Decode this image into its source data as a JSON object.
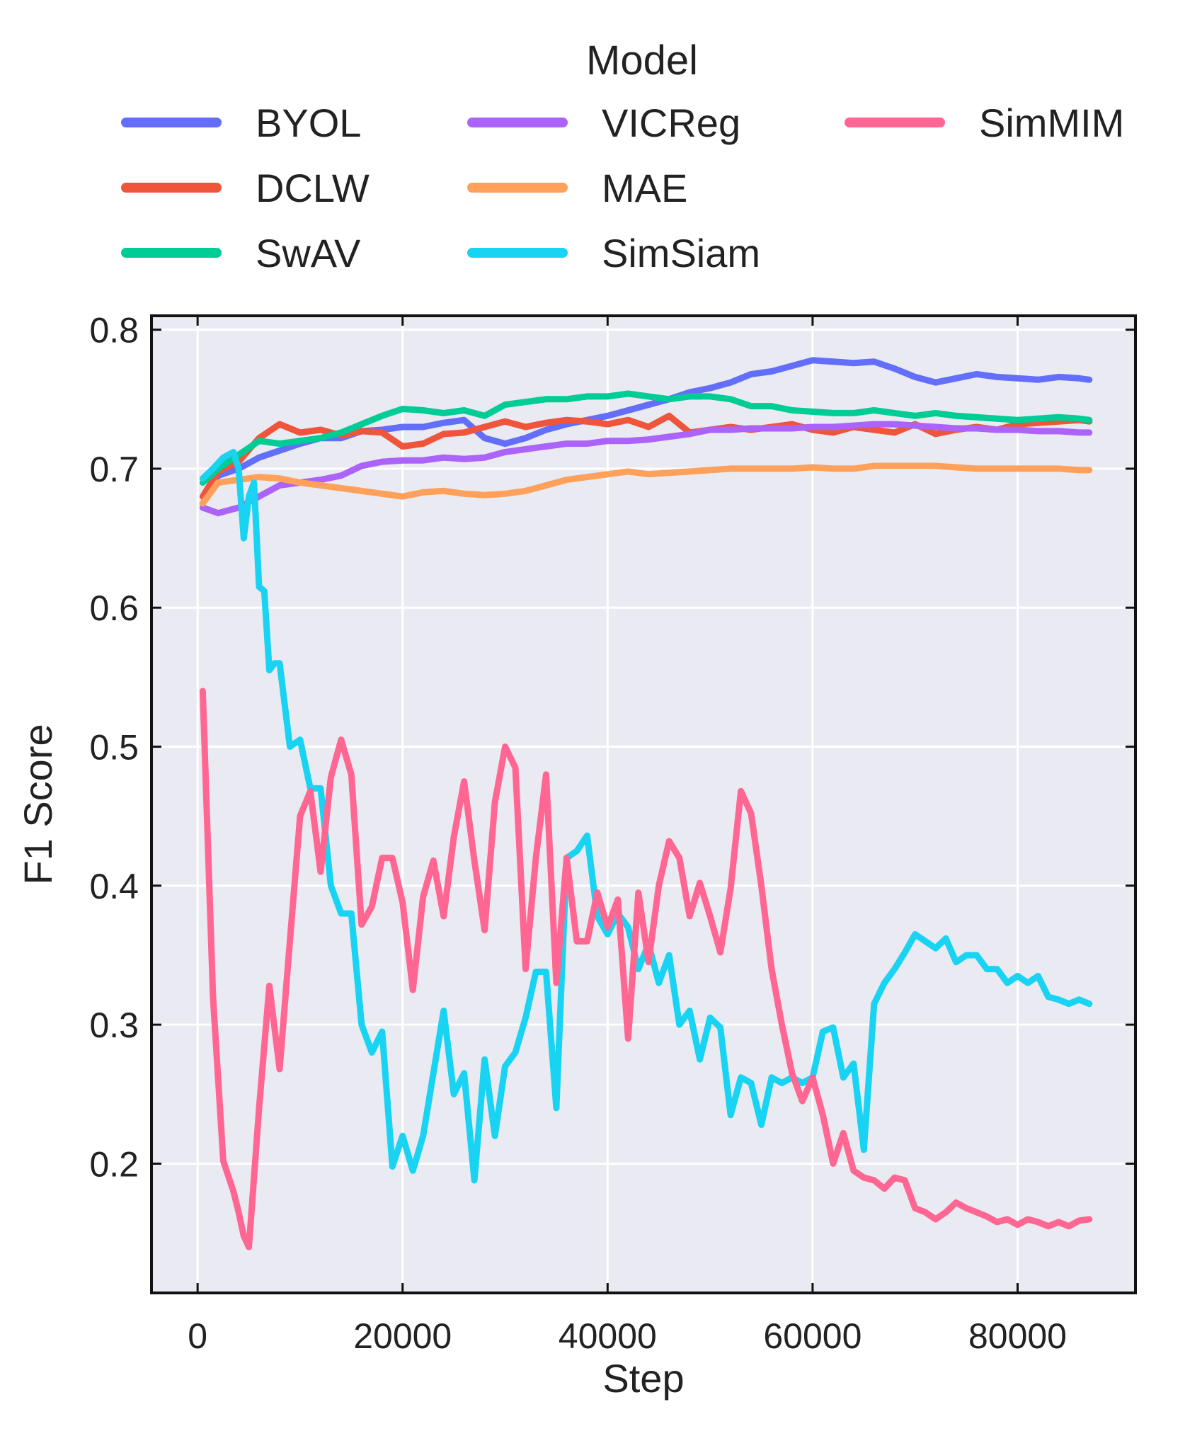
{
  "chart_data": {
    "type": "line",
    "xlabel": "Step",
    "ylabel": "F1 Score",
    "xlim": [
      -4500,
      91500
    ],
    "ylim": [
      0.107,
      0.81
    ],
    "xticks": [
      0,
      20000,
      40000,
      60000,
      80000
    ],
    "yticks": [
      0.2,
      0.3,
      0.4,
      0.5,
      0.6,
      0.7,
      0.8
    ],
    "xtick_labels": [
      "0",
      "20000",
      "40000",
      "60000",
      "80000"
    ],
    "ytick_labels": [
      "0.2",
      "0.3",
      "0.4",
      "0.5",
      "0.6",
      "0.7",
      "0.8"
    ],
    "grid": true,
    "legend": {
      "title": "Model",
      "placement": "top",
      "columns": 3
    },
    "series": [
      {
        "name": "BYOL",
        "color": "#636EFA",
        "x": [
          500,
          2000,
          4000,
          6000,
          8000,
          10000,
          12000,
          14000,
          16000,
          18000,
          20000,
          22000,
          24000,
          26000,
          28000,
          30000,
          32000,
          34000,
          36000,
          38000,
          40000,
          42000,
          44000,
          46000,
          48000,
          50000,
          52000,
          54000,
          56000,
          58000,
          60000,
          62000,
          64000,
          66000,
          68000,
          70000,
          72000,
          74000,
          76000,
          78000,
          80000,
          82000,
          84000,
          86000,
          87000
        ],
        "values": [
          0.675,
          0.695,
          0.7,
          0.708,
          0.713,
          0.718,
          0.722,
          0.722,
          0.727,
          0.728,
          0.73,
          0.73,
          0.733,
          0.735,
          0.722,
          0.718,
          0.722,
          0.728,
          0.732,
          0.735,
          0.738,
          0.742,
          0.746,
          0.75,
          0.755,
          0.758,
          0.762,
          0.768,
          0.77,
          0.774,
          0.778,
          0.777,
          0.776,
          0.777,
          0.772,
          0.766,
          0.762,
          0.765,
          0.768,
          0.766,
          0.765,
          0.764,
          0.766,
          0.765,
          0.764
        ]
      },
      {
        "name": "DCLW",
        "color": "#EF553B",
        "x": [
          500,
          2000,
          4000,
          6000,
          8000,
          10000,
          12000,
          14000,
          16000,
          18000,
          20000,
          22000,
          24000,
          26000,
          28000,
          30000,
          32000,
          34000,
          36000,
          38000,
          40000,
          42000,
          44000,
          46000,
          48000,
          50000,
          52000,
          54000,
          56000,
          58000,
          60000,
          62000,
          64000,
          66000,
          68000,
          70000,
          72000,
          74000,
          76000,
          78000,
          80000,
          82000,
          84000,
          86000,
          87000
        ],
        "values": [
          0.68,
          0.698,
          0.705,
          0.722,
          0.732,
          0.726,
          0.728,
          0.724,
          0.727,
          0.726,
          0.716,
          0.718,
          0.725,
          0.726,
          0.73,
          0.734,
          0.73,
          0.733,
          0.735,
          0.734,
          0.732,
          0.735,
          0.73,
          0.738,
          0.726,
          0.728,
          0.73,
          0.728,
          0.73,
          0.732,
          0.728,
          0.726,
          0.73,
          0.728,
          0.726,
          0.732,
          0.725,
          0.728,
          0.73,
          0.728,
          0.732,
          0.733,
          0.734,
          0.735,
          0.734
        ]
      },
      {
        "name": "SwAV",
        "color": "#00CC96",
        "x": [
          500,
          2000,
          4000,
          6000,
          8000,
          10000,
          12000,
          14000,
          16000,
          18000,
          20000,
          22000,
          24000,
          26000,
          28000,
          30000,
          32000,
          34000,
          36000,
          38000,
          40000,
          42000,
          44000,
          46000,
          48000,
          50000,
          52000,
          54000,
          56000,
          58000,
          60000,
          62000,
          64000,
          66000,
          68000,
          70000,
          72000,
          74000,
          76000,
          78000,
          80000,
          82000,
          84000,
          86000,
          87000
        ],
        "values": [
          0.69,
          0.7,
          0.71,
          0.72,
          0.718,
          0.72,
          0.722,
          0.726,
          0.732,
          0.738,
          0.743,
          0.742,
          0.74,
          0.742,
          0.738,
          0.746,
          0.748,
          0.75,
          0.75,
          0.752,
          0.752,
          0.754,
          0.752,
          0.75,
          0.752,
          0.752,
          0.75,
          0.745,
          0.745,
          0.742,
          0.741,
          0.74,
          0.74,
          0.742,
          0.74,
          0.738,
          0.74,
          0.738,
          0.737,
          0.736,
          0.735,
          0.736,
          0.737,
          0.736,
          0.735
        ]
      },
      {
        "name": "VICReg",
        "color": "#AB63FA",
        "x": [
          500,
          2000,
          4000,
          6000,
          8000,
          10000,
          12000,
          14000,
          16000,
          18000,
          20000,
          22000,
          24000,
          26000,
          28000,
          30000,
          32000,
          34000,
          36000,
          38000,
          40000,
          42000,
          44000,
          46000,
          48000,
          50000,
          52000,
          54000,
          56000,
          58000,
          60000,
          62000,
          64000,
          66000,
          68000,
          70000,
          72000,
          74000,
          76000,
          78000,
          80000,
          82000,
          84000,
          86000,
          87000
        ],
        "values": [
          0.672,
          0.668,
          0.672,
          0.68,
          0.688,
          0.69,
          0.692,
          0.695,
          0.702,
          0.705,
          0.706,
          0.706,
          0.708,
          0.707,
          0.708,
          0.712,
          0.714,
          0.716,
          0.718,
          0.718,
          0.72,
          0.72,
          0.721,
          0.723,
          0.725,
          0.728,
          0.728,
          0.729,
          0.729,
          0.729,
          0.73,
          0.73,
          0.731,
          0.732,
          0.732,
          0.731,
          0.73,
          0.729,
          0.729,
          0.728,
          0.728,
          0.727,
          0.727,
          0.726,
          0.726
        ]
      },
      {
        "name": "MAE",
        "color": "#FFA15A",
        "x": [
          500,
          2000,
          4000,
          6000,
          8000,
          10000,
          12000,
          14000,
          16000,
          18000,
          20000,
          22000,
          24000,
          26000,
          28000,
          30000,
          32000,
          34000,
          36000,
          38000,
          40000,
          42000,
          44000,
          46000,
          48000,
          50000,
          52000,
          54000,
          56000,
          58000,
          60000,
          62000,
          64000,
          66000,
          68000,
          70000,
          72000,
          74000,
          76000,
          78000,
          80000,
          82000,
          84000,
          86000,
          87000
        ],
        "values": [
          0.675,
          0.69,
          0.692,
          0.694,
          0.693,
          0.69,
          0.688,
          0.686,
          0.684,
          0.682,
          0.68,
          0.683,
          0.684,
          0.682,
          0.681,
          0.682,
          0.684,
          0.688,
          0.692,
          0.694,
          0.696,
          0.698,
          0.696,
          0.697,
          0.698,
          0.699,
          0.7,
          0.7,
          0.7,
          0.7,
          0.701,
          0.7,
          0.7,
          0.702,
          0.702,
          0.702,
          0.702,
          0.701,
          0.7,
          0.7,
          0.7,
          0.7,
          0.7,
          0.699,
          0.699
        ]
      },
      {
        "name": "SimSiam",
        "color": "#19D3F3",
        "x": [
          500,
          1500,
          2500,
          3500,
          4000,
          4500,
          5000,
          5500,
          6000,
          6500,
          7000,
          7500,
          8000,
          9000,
          10000,
          11000,
          12000,
          13000,
          14000,
          15000,
          16000,
          17000,
          18000,
          19000,
          20000,
          21000,
          22000,
          23000,
          24000,
          25000,
          26000,
          27000,
          28000,
          29000,
          30000,
          31000,
          32000,
          33000,
          34000,
          35000,
          36000,
          37000,
          38000,
          39000,
          40000,
          41000,
          42000,
          43000,
          44000,
          45000,
          46000,
          47000,
          48000,
          49000,
          50000,
          51000,
          52000,
          53000,
          54000,
          55000,
          56000,
          57000,
          58000,
          59000,
          60000,
          61000,
          62000,
          63000,
          64000,
          65000,
          66000,
          67000,
          68000,
          69000,
          70000,
          71000,
          72000,
          73000,
          74000,
          75000,
          76000,
          77000,
          78000,
          79000,
          80000,
          81000,
          82000,
          83000,
          84000,
          85000,
          86000,
          87000
        ],
        "values": [
          0.693,
          0.7,
          0.708,
          0.712,
          0.7,
          0.65,
          0.68,
          0.69,
          0.615,
          0.612,
          0.555,
          0.56,
          0.56,
          0.5,
          0.505,
          0.47,
          0.47,
          0.4,
          0.38,
          0.38,
          0.3,
          0.28,
          0.295,
          0.198,
          0.22,
          0.195,
          0.22,
          0.265,
          0.31,
          0.25,
          0.265,
          0.188,
          0.275,
          0.22,
          0.27,
          0.28,
          0.305,
          0.338,
          0.338,
          0.24,
          0.42,
          0.425,
          0.436,
          0.378,
          0.365,
          0.38,
          0.37,
          0.34,
          0.358,
          0.33,
          0.35,
          0.3,
          0.31,
          0.275,
          0.305,
          0.298,
          0.235,
          0.262,
          0.258,
          0.228,
          0.262,
          0.258,
          0.262,
          0.258,
          0.262,
          0.295,
          0.298,
          0.262,
          0.272,
          0.21,
          0.315,
          0.33,
          0.34,
          0.352,
          0.365,
          0.36,
          0.355,
          0.362,
          0.345,
          0.35,
          0.35,
          0.34,
          0.34,
          0.33,
          0.335,
          0.33,
          0.335,
          0.32,
          0.318,
          0.315,
          0.318,
          0.315
        ]
      },
      {
        "name": "SimMIM",
        "color": "#FF6692",
        "x": [
          500,
          1500,
          2500,
          3500,
          4000,
          4500,
          5000,
          6000,
          7000,
          8000,
          9000,
          10000,
          11000,
          12000,
          13000,
          14000,
          15000,
          16000,
          17000,
          18000,
          19000,
          20000,
          21000,
          22000,
          23000,
          24000,
          25000,
          26000,
          27000,
          28000,
          29000,
          30000,
          31000,
          32000,
          33000,
          34000,
          35000,
          36000,
          37000,
          38000,
          39000,
          40000,
          41000,
          42000,
          43000,
          44000,
          45000,
          46000,
          47000,
          48000,
          49000,
          50000,
          51000,
          52000,
          53000,
          54000,
          55000,
          56000,
          57000,
          58000,
          59000,
          60000,
          61000,
          62000,
          63000,
          64000,
          65000,
          66000,
          67000,
          68000,
          69000,
          70000,
          71000,
          72000,
          73000,
          74000,
          75000,
          76000,
          77000,
          78000,
          79000,
          80000,
          81000,
          82000,
          83000,
          84000,
          85000,
          86000,
          87000
        ],
        "values": [
          0.54,
          0.32,
          0.202,
          0.18,
          0.165,
          0.148,
          0.14,
          0.24,
          0.328,
          0.268,
          0.36,
          0.45,
          0.468,
          0.41,
          0.478,
          0.505,
          0.48,
          0.372,
          0.385,
          0.42,
          0.42,
          0.388,
          0.325,
          0.392,
          0.418,
          0.378,
          0.435,
          0.475,
          0.418,
          0.368,
          0.46,
          0.5,
          0.485,
          0.34,
          0.42,
          0.48,
          0.33,
          0.42,
          0.36,
          0.36,
          0.395,
          0.37,
          0.39,
          0.29,
          0.395,
          0.345,
          0.4,
          0.432,
          0.42,
          0.378,
          0.402,
          0.378,
          0.352,
          0.398,
          0.468,
          0.452,
          0.4,
          0.34,
          0.3,
          0.265,
          0.245,
          0.262,
          0.235,
          0.2,
          0.222,
          0.195,
          0.19,
          0.188,
          0.182,
          0.19,
          0.188,
          0.168,
          0.165,
          0.16,
          0.165,
          0.172,
          0.168,
          0.165,
          0.162,
          0.158,
          0.16,
          0.156,
          0.16,
          0.158,
          0.155,
          0.158,
          0.155,
          0.159,
          0.16
        ]
      }
    ]
  }
}
